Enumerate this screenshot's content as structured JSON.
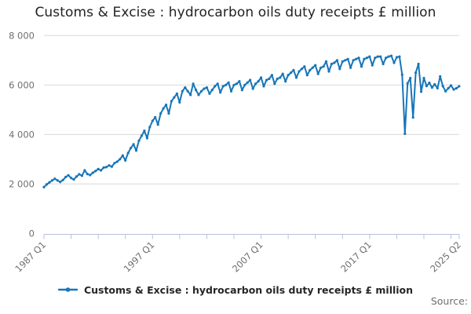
{
  "title": "Customs & Excise : hydrocarbon oils duty receipts £ million",
  "legend": {
    "label": "Customs & Excise : hydrocarbon oils duty receipts £ million"
  },
  "source_label": "Source:",
  "colors": {
    "line": "#1776b8",
    "grid": "#d9d9d9",
    "axis": "#b6c2da",
    "tick_text": "#6f6f6f",
    "title_text": "#222222"
  },
  "chart_data": {
    "type": "line",
    "title": "Customs & Excise : hydrocarbon oils duty receipts £ million",
    "xlabel": "",
    "ylabel": "",
    "x_start": "1987 Q1",
    "x_end": "2025 Q2",
    "frequency": "quarterly",
    "ylim": [
      0,
      8000
    ],
    "grid": "horizontal",
    "legend_position": "bottom",
    "y_ticks": [
      {
        "value": 0,
        "label": "0"
      },
      {
        "value": 2000,
        "label": "2 000"
      },
      {
        "value": 4000,
        "label": "4 000"
      },
      {
        "value": 6000,
        "label": "6 000"
      },
      {
        "value": 8000,
        "label": "8 000"
      }
    ],
    "x_tick_positions": [
      0,
      10,
      20,
      30,
      40,
      50,
      60,
      70,
      80,
      90,
      100,
      110,
      120,
      130,
      140,
      150,
      153
    ],
    "x_tick_labels": [
      {
        "pos": 0,
        "label": "1987 Q1"
      },
      {
        "pos": 40,
        "label": "1997 Q1"
      },
      {
        "pos": 80,
        "label": "2007 Q1"
      },
      {
        "pos": 120,
        "label": "2017 Q1"
      },
      {
        "pos": 153,
        "label": "2025 Q2"
      }
    ],
    "series": [
      {
        "name": "Customs & Excise : hydrocarbon oils duty receipts £ million",
        "values": [
          1870,
          1980,
          2060,
          2140,
          2210,
          2140,
          2080,
          2160,
          2280,
          2350,
          2240,
          2180,
          2300,
          2390,
          2330,
          2550,
          2400,
          2360,
          2450,
          2520,
          2600,
          2550,
          2660,
          2680,
          2750,
          2700,
          2840,
          2900,
          3000,
          3150,
          2950,
          3250,
          3450,
          3600,
          3350,
          3750,
          3950,
          4150,
          3850,
          4300,
          4550,
          4700,
          4400,
          4850,
          5050,
          5200,
          4850,
          5350,
          5500,
          5650,
          5300,
          5750,
          5900,
          5750,
          5600,
          6050,
          5800,
          5600,
          5750,
          5850,
          5900,
          5650,
          5800,
          5950,
          6050,
          5700,
          5950,
          6000,
          6100,
          5750,
          6000,
          6050,
          6150,
          5800,
          6000,
          6100,
          6200,
          5850,
          6050,
          6150,
          6300,
          5950,
          6200,
          6250,
          6400,
          6050,
          6250,
          6300,
          6450,
          6150,
          6400,
          6500,
          6600,
          6300,
          6550,
          6650,
          6750,
          6400,
          6600,
          6700,
          6800,
          6450,
          6700,
          6750,
          6950,
          6550,
          6850,
          6900,
          7000,
          6650,
          6950,
          7000,
          7050,
          6700,
          7000,
          7050,
          7100,
          6750,
          7050,
          7100,
          7150,
          6800,
          7100,
          7150,
          7150,
          6850,
          7100,
          7150,
          7180,
          6900,
          7120,
          7150,
          6420,
          4030,
          6070,
          6280,
          4690,
          6500,
          6850,
          5730,
          6280,
          5960,
          6090,
          5900,
          6030,
          5870,
          6350,
          5950,
          5750,
          5870,
          5980,
          5820,
          5870,
          5950
        ]
      }
    ]
  }
}
